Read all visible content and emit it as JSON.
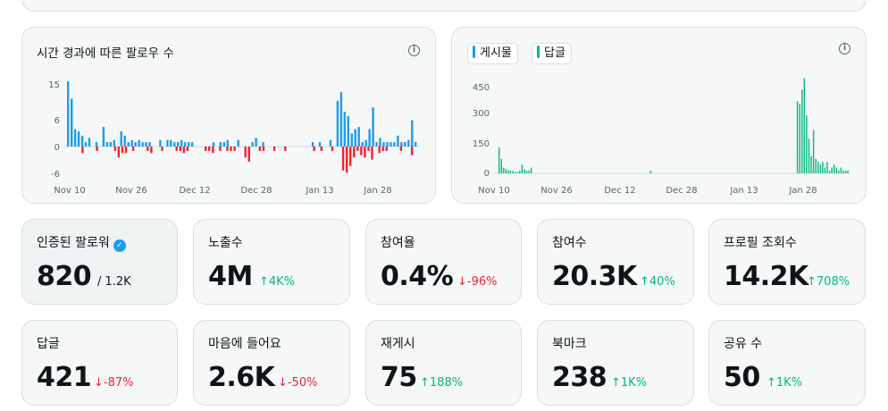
{
  "followers_chart": {
    "title": "시간 경과에 따른 팔로우 수",
    "y_ticks": [
      "15",
      "6",
      "0",
      "-6"
    ],
    "x_ticks": [
      "Nov 10",
      "Nov 26",
      "Dec 12",
      "Dec 28",
      "Jan 13",
      "Jan 28"
    ]
  },
  "posts_chart": {
    "legend": [
      {
        "label": "게시물",
        "color": "#1d9bf0"
      },
      {
        "label": "답글",
        "color": "#00ba7c"
      }
    ],
    "y_ticks": [
      "450",
      "300",
      "150",
      "0"
    ],
    "x_ticks": [
      "Nov 10",
      "Nov 26",
      "Dec 12",
      "Dec 28",
      "Jan 13",
      "Jan 28"
    ]
  },
  "chart_data": [
    {
      "type": "bar",
      "title": "시간 경과에 따른 팔로우 수",
      "ylim": [
        -6,
        15
      ],
      "x_ticks": [
        "Nov 10",
        "Nov 26",
        "Dec 12",
        "Dec 28",
        "Jan 13",
        "Jan 28"
      ],
      "series": [
        {
          "name": "follows",
          "color": "#1d9bf0",
          "values": [
            15,
            11,
            4,
            3.5,
            2.5,
            1,
            2,
            0,
            1,
            0,
            4.5,
            1,
            1,
            1.5,
            0,
            3.5,
            2.5,
            1,
            1.5,
            1,
            1.5,
            1,
            1,
            1,
            0,
            0,
            1.5,
            0,
            1.5,
            1.5,
            1,
            1,
            1.5,
            1,
            1,
            1,
            0,
            0,
            0,
            0,
            0,
            1,
            0,
            1,
            1,
            1.5,
            0,
            0,
            1.5,
            0,
            0,
            0,
            1,
            2,
            0,
            1,
            0,
            0,
            0,
            0,
            0,
            0,
            0,
            0,
            0,
            0,
            0,
            0,
            0,
            1,
            0,
            1,
            0,
            0,
            1.5,
            0,
            10.5,
            12.5,
            8,
            7,
            3,
            4,
            4.5,
            1,
            1.5,
            4,
            9,
            1,
            2,
            1,
            1,
            1,
            1,
            2.5,
            1,
            1,
            1.5,
            6,
            1
          ]
        },
        {
          "name": "unfollows",
          "color": "#f4212e",
          "values": [
            0,
            0,
            0,
            0,
            -1.5,
            0,
            0,
            0,
            -1,
            0,
            0,
            0,
            0,
            -1,
            -2.5,
            -1.5,
            -1.5,
            0,
            -1,
            0,
            0,
            0,
            -1,
            -1.5,
            0,
            0,
            -1,
            0,
            0,
            0,
            -1,
            -1,
            -1.5,
            -1,
            0,
            0,
            0,
            0,
            -1,
            -1,
            -1.5,
            0,
            -1,
            0,
            -1,
            -1,
            -1,
            0,
            0,
            -2.5,
            -3.5,
            0,
            0,
            -1,
            -1,
            0,
            0,
            -1,
            0,
            0,
            -1,
            0,
            0,
            0,
            0,
            0,
            0,
            0,
            -1,
            0,
            -1,
            0,
            0,
            -1,
            0,
            0,
            -5.5,
            -6,
            -4.5,
            -2.5,
            -1,
            -2,
            -2.5,
            -1,
            -3,
            0,
            -1.5,
            -1,
            -1,
            0,
            0,
            0,
            -1,
            0,
            0,
            -2,
            0
          ]
        }
      ]
    },
    {
      "type": "bar",
      "ylim": [
        0,
        450
      ],
      "x_ticks": [
        "Nov 10",
        "Nov 26",
        "Dec 12",
        "Dec 28",
        "Jan 13",
        "Jan 28"
      ],
      "series": [
        {
          "name": "게시물",
          "color": "#1d9bf0",
          "values": [
            0,
            0,
            0,
            0,
            0,
            0,
            0,
            0,
            0,
            0,
            0,
            0,
            0,
            0,
            0,
            0,
            0,
            0,
            0,
            0,
            0,
            0,
            0,
            0,
            0,
            0,
            0,
            0,
            0,
            0,
            0,
            0,
            0,
            0,
            0,
            0,
            0,
            0,
            0,
            0,
            0,
            0,
            0,
            0,
            0,
            0,
            0,
            0,
            0,
            0,
            0,
            0,
            0,
            0,
            0,
            0,
            0,
            0,
            0,
            0,
            0,
            0,
            0,
            0,
            0,
            0,
            0,
            0,
            0,
            0,
            0,
            0,
            0,
            0,
            0,
            0,
            0,
            0,
            0,
            0,
            0,
            0,
            0,
            0,
            0,
            0,
            0,
            0,
            0,
            0,
            0,
            0,
            0,
            0,
            0,
            0,
            0,
            0,
            0,
            0
          ]
        },
        {
          "name": "답글",
          "color": "#00ba7c",
          "values": [
            90,
            50,
            20,
            15,
            10,
            10,
            8,
            5,
            5,
            10,
            30,
            15,
            10,
            10,
            20,
            0,
            0,
            0,
            0,
            0,
            0,
            0,
            0,
            0,
            0,
            0,
            0,
            0,
            0,
            0,
            0,
            0,
            0,
            0,
            0,
            0,
            0,
            0,
            0,
            0,
            0,
            0,
            0,
            0,
            0,
            0,
            0,
            0,
            0,
            0,
            0,
            0,
            0,
            0,
            0,
            0,
            0,
            0,
            0,
            0,
            0,
            0,
            0,
            0,
            0,
            0,
            10,
            0,
            0,
            0,
            0,
            0,
            0,
            0,
            0,
            0,
            0,
            0,
            0,
            0,
            0,
            0,
            0,
            0,
            0,
            0,
            0,
            0,
            0,
            0,
            0,
            0,
            0,
            0,
            0,
            0,
            0,
            0,
            0,
            0,
            0,
            0,
            0,
            0,
            0,
            0,
            0,
            0,
            0,
            0,
            0,
            0,
            0,
            0,
            0,
            0,
            0,
            0,
            0,
            0,
            0,
            0,
            0,
            0,
            0,
            0,
            0,
            0,
            0,
            0,
            250,
            240,
            290,
            330,
            200,
            120,
            60,
            150,
            50,
            40,
            30,
            40,
            20,
            40,
            10,
            20,
            30,
            20,
            10,
            20,
            10,
            10,
            10
          ]
        }
      ]
    }
  ],
  "stats": [
    {
      "label": "인증된 팔로워",
      "verified_icon": "✓",
      "value": "820",
      "sub": "/ 1.2K"
    },
    {
      "label": "노출수",
      "value": "4M",
      "delta": "4K%",
      "dir": "up"
    },
    {
      "label": "참여율",
      "value": "0.4%",
      "delta": "-96%",
      "dir": "down"
    },
    {
      "label": "참여수",
      "value": "20.3K",
      "delta": "40%",
      "dir": "up"
    },
    {
      "label": "프로필 조회수",
      "value": "14.2K",
      "delta": "708%",
      "dir": "up"
    },
    {
      "label": "답글",
      "value": "421",
      "delta": "-87%",
      "dir": "down"
    },
    {
      "label": "마음에 들어요",
      "value": "2.6K",
      "delta": "-50%",
      "dir": "down"
    },
    {
      "label": "재게시",
      "value": "75",
      "delta": "188%",
      "dir": "up"
    },
    {
      "label": "북마크",
      "value": "238",
      "delta": "1K%",
      "dir": "up"
    },
    {
      "label": "공유 수",
      "value": "50",
      "delta": "1K%",
      "dir": "up"
    }
  ],
  "arrows": {
    "up": "↑",
    "down": "↓"
  },
  "info_icon": "i"
}
